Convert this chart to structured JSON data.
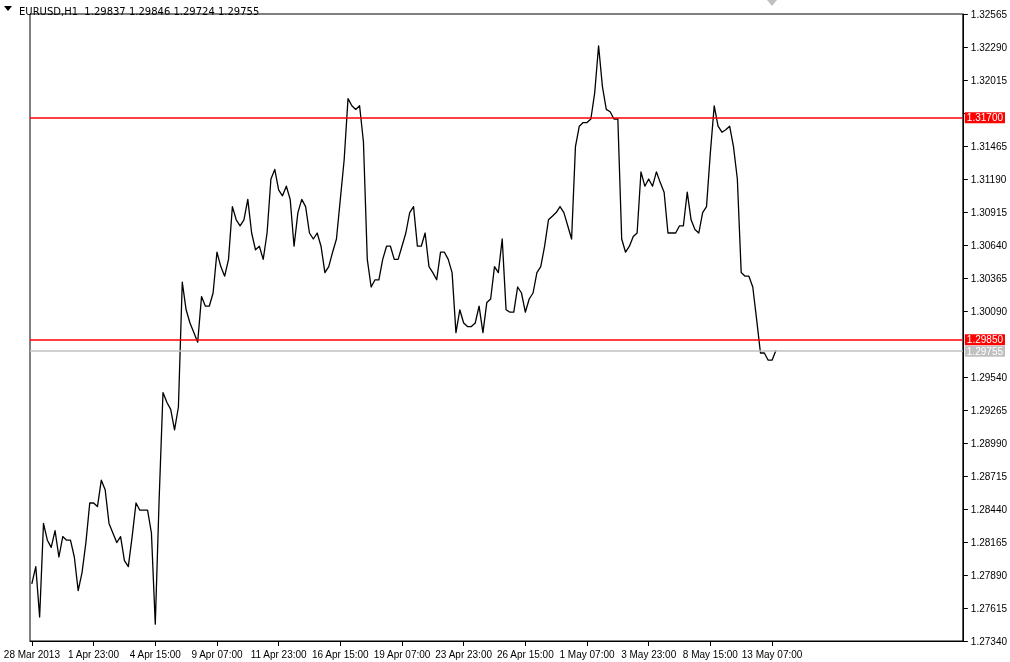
{
  "chart_data": {
    "type": "line",
    "title": "EURUSD,H1  1.29837 1.29846 1.29724 1.29755",
    "categories": [
      "28 Mar 2013",
      null,
      null,
      null,
      null,
      null,
      null,
      null,
      null,
      null,
      null,
      null,
      null,
      null,
      null,
      null,
      "1 Apr 23:00",
      null,
      null,
      null,
      null,
      null,
      null,
      null,
      null,
      null,
      null,
      null,
      null,
      null,
      null,
      null,
      "4 Apr 15:00",
      null,
      null,
      null,
      null,
      null,
      null,
      null,
      null,
      null,
      null,
      null,
      null,
      null,
      null,
      null,
      "9 Apr 07:00",
      null,
      null,
      null,
      null,
      null,
      null,
      null,
      null,
      null,
      null,
      null,
      null,
      null,
      null,
      null,
      "11 Apr 23:00",
      null,
      null,
      null,
      null,
      null,
      null,
      null,
      null,
      null,
      null,
      null,
      null,
      null,
      null,
      null,
      "16 Apr 15:00",
      null,
      null,
      null,
      null,
      null,
      null,
      null,
      null,
      null,
      null,
      null,
      null,
      null,
      null,
      null,
      "19 Apr 07:00",
      null,
      null,
      null,
      null,
      null,
      null,
      null,
      null,
      null,
      null,
      null,
      null,
      null,
      null,
      null,
      "23 Apr 23:00",
      null,
      null,
      null,
      null,
      null,
      null,
      null,
      null,
      null,
      null,
      null,
      null,
      null,
      null,
      null,
      "26 Apr 15:00",
      null,
      null,
      null,
      null,
      null,
      null,
      null,
      null,
      null,
      null,
      null,
      null,
      null,
      null,
      null,
      "1 May 07:00",
      null,
      null,
      null,
      null,
      null,
      null,
      null,
      null,
      null,
      null,
      null,
      null,
      null,
      null,
      null,
      "3 May 23:00",
      null,
      null,
      null,
      null,
      null,
      null,
      null,
      null,
      null,
      null,
      null,
      null,
      null,
      null,
      null,
      "8 May 15:00",
      null,
      null,
      null,
      null,
      null,
      null,
      null,
      null,
      null,
      null,
      null,
      null,
      null,
      null,
      null,
      "13 May 07:00",
      null,
      null,
      null,
      null,
      null,
      null,
      null,
      null,
      null,
      null,
      null,
      null,
      null,
      null,
      null,
      null,
      null,
      null,
      null,
      null,
      null,
      null,
      null,
      null,
      null,
      null,
      null,
      null,
      null,
      null,
      null,
      null,
      null,
      null,
      null,
      null,
      null,
      null,
      null,
      null,
      null,
      null,
      null,
      null,
      null,
      null,
      null,
      null,
      null
    ],
    "series": [
      {
        "color": "#000000",
        "values": [
          1.2782,
          1.2796,
          1.2754,
          1.2832,
          1.2818,
          1.2812,
          1.2826,
          1.2804,
          1.2821,
          1.2818,
          1.2818,
          1.2804,
          1.2776,
          1.2791,
          1.2816,
          1.2849,
          1.2849,
          1.2846,
          1.2868,
          1.286,
          1.2832,
          1.2824,
          1.2816,
          1.2821,
          1.2801,
          1.2796,
          1.2821,
          1.2849,
          1.2843,
          1.2843,
          1.2843,
          1.2824,
          1.2748,
          1.2852,
          1.2941,
          1.2933,
          1.2927,
          1.291,
          1.2929,
          1.3033,
          1.301,
          1.2999,
          1.2991,
          1.2983,
          1.3021,
          1.3013,
          1.3013,
          1.3024,
          1.3058,
          1.3046,
          1.3038,
          1.3052,
          1.3096,
          1.3085,
          1.308,
          1.3085,
          1.3102,
          1.3074,
          1.306,
          1.3063,
          1.3052,
          1.3074,
          1.3119,
          1.3127,
          1.311,
          1.3105,
          1.3113,
          1.3102,
          1.3063,
          1.3091,
          1.3102,
          1.3096,
          1.3074,
          1.3069,
          1.3074,
          1.3063,
          1.3041,
          1.3046,
          1.3058,
          1.3069,
          1.3102,
          1.3135,
          1.3186,
          1.318,
          1.3177,
          1.318,
          1.315,
          1.3052,
          1.3029,
          1.3035,
          1.3035,
          1.3052,
          1.3063,
          1.3063,
          1.3052,
          1.3052,
          1.3063,
          1.3074,
          1.3091,
          1.3096,
          1.3063,
          1.3063,
          1.3074,
          1.3046,
          1.3041,
          1.3035,
          1.3058,
          1.3058,
          1.3052,
          1.3041,
          1.2991,
          1.301,
          1.2999,
          1.2996,
          1.2996,
          1.2999,
          1.3013,
          1.2991,
          1.3016,
          1.3019,
          1.3046,
          1.3041,
          1.3069,
          1.301,
          1.3008,
          1.3008,
          1.3029,
          1.3024,
          1.3008,
          1.3019,
          1.3024,
          1.3041,
          1.3046,
          1.3063,
          1.3085,
          1.3088,
          1.3091,
          1.3096,
          1.3091,
          1.308,
          1.3069,
          1.3146,
          1.3163,
          1.3166,
          1.3166,
          1.3169,
          1.3191,
          1.323,
          1.3196,
          1.3177,
          1.3175,
          1.3169,
          1.3169,
          1.3069,
          1.3058,
          1.3063,
          1.3071,
          1.3074,
          1.3125,
          1.3113,
          1.3119,
          1.3113,
          1.3125,
          1.3116,
          1.3108,
          1.3074,
          1.3074,
          1.3074,
          1.308,
          1.308,
          1.3108,
          1.3085,
          1.3077,
          1.3074,
          1.3091,
          1.3096,
          1.3141,
          1.318,
          1.3163,
          1.3158,
          1.316,
          1.3163,
          1.3146,
          1.3119,
          1.3041,
          1.3038,
          1.3038,
          1.3029,
          1.3002,
          1.2974,
          1.2974,
          1.2968,
          1.2968,
          1.2976,
          null,
          null,
          null,
          null,
          null,
          null,
          null,
          null,
          null,
          null,
          null,
          null,
          null,
          null,
          null,
          null,
          null,
          null,
          null,
          null,
          null,
          null,
          null,
          null,
          null,
          null,
          null,
          null,
          null,
          null,
          null,
          null,
          null,
          null,
          null,
          null,
          null,
          null,
          null,
          null,
          null,
          null,
          null,
          null,
          null,
          null,
          null,
          null
        ]
      }
    ],
    "ylim": [
      1.2734,
      1.32565
    ],
    "yticks": [
      {
        "value": 1.2734,
        "label": "1.27340"
      },
      {
        "value": 1.27615,
        "label": "1.27615"
      },
      {
        "value": 1.2789,
        "label": "1.27890"
      },
      {
        "value": 1.28165,
        "label": "1.28165"
      },
      {
        "value": 1.2844,
        "label": "1.28440"
      },
      {
        "value": 1.28715,
        "label": "1.28715"
      },
      {
        "value": 1.2899,
        "label": "1.28990"
      },
      {
        "value": 1.29265,
        "label": "1.29265"
      },
      {
        "value": 1.2954,
        "label": "1.29540"
      },
      {
        "value": 1.3009,
        "label": "1.30090"
      },
      {
        "value": 1.30365,
        "label": "1.30365"
      },
      {
        "value": 1.3064,
        "label": "1.30640"
      },
      {
        "value": 1.30915,
        "label": "1.30915"
      },
      {
        "value": 1.3119,
        "label": "1.31190"
      },
      {
        "value": 1.31465,
        "label": "1.31465"
      },
      {
        "value": 1.3174,
        "label": null
      },
      {
        "value": 1.32015,
        "label": "1.32015"
      },
      {
        "value": 1.3229,
        "label": "1.32290"
      },
      {
        "value": 1.32565,
        "label": "1.32565"
      }
    ],
    "ref_lines": [
      {
        "axis": "y",
        "value": 1.317,
        "label": "1.31700",
        "color": "#ff0000"
      },
      {
        "axis": "y",
        "value": 1.2985,
        "label": "1.29850",
        "color": "#ff0000"
      },
      {
        "axis": "y",
        "value": 1.29755,
        "label": "1.29755",
        "color": "#c0c0c0"
      }
    ],
    "grid": false,
    "marker": "none",
    "line_style": "solid"
  }
}
